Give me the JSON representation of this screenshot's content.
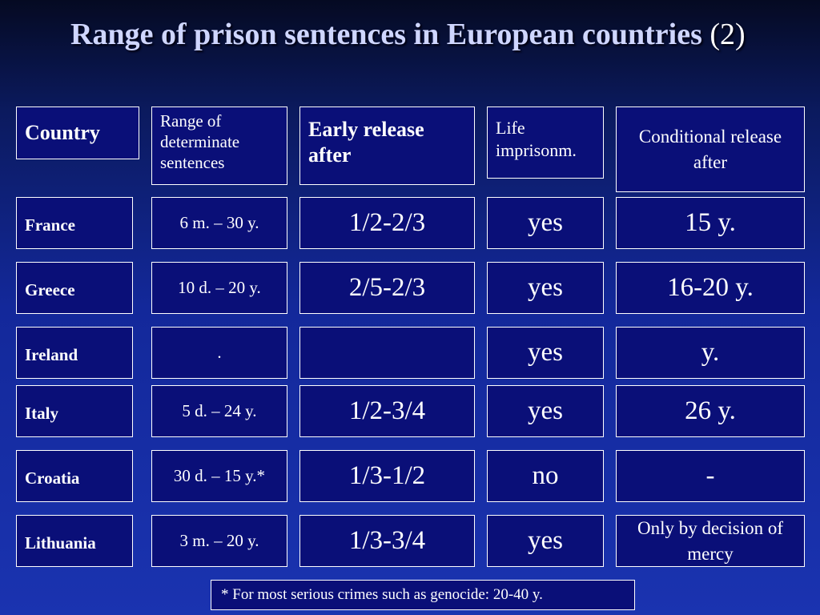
{
  "title": {
    "text": "Range of prison sentences in European countries",
    "suffix": "(2)"
  },
  "headers": {
    "country": "Country",
    "range": "Range of determinate sentences",
    "early": "Early release after",
    "life": "Life imprisonm.",
    "conditional": "Conditional release after"
  },
  "rows": [
    {
      "country": "France",
      "range": "6 m. – 30 y.",
      "early": "1/2-2/3",
      "life": "yes",
      "conditional": "15 y."
    },
    {
      "country": "Greece",
      "range": "10 d. – 20 y.",
      "early": "2/5-2/3",
      "life": "yes",
      "conditional": "16-20 y."
    },
    {
      "country": "Ireland",
      "range": ".",
      "early": "",
      "life": "yes",
      "conditional": "y."
    },
    {
      "country": "Italy",
      "range": "5 d. – 24 y.",
      "early": "1/2-3/4",
      "life": "yes",
      "conditional": "26 y."
    },
    {
      "country": "Croatia",
      "range": "30 d. – 15 y.*",
      "early": "1/3-1/2",
      "life": "no",
      "conditional": "-"
    },
    {
      "country": "Lithuania",
      "range": "3 m. – 20 y.",
      "early": "1/3-3/4",
      "life": "yes",
      "conditional": "Only by decision of  mercy"
    }
  ],
  "footnote": "* For most serious crimes such as genocide: 20-40  y.",
  "colors": {
    "cell_background": "#0a0f78",
    "border": "#ffffff",
    "title": "#cfd6ff"
  }
}
